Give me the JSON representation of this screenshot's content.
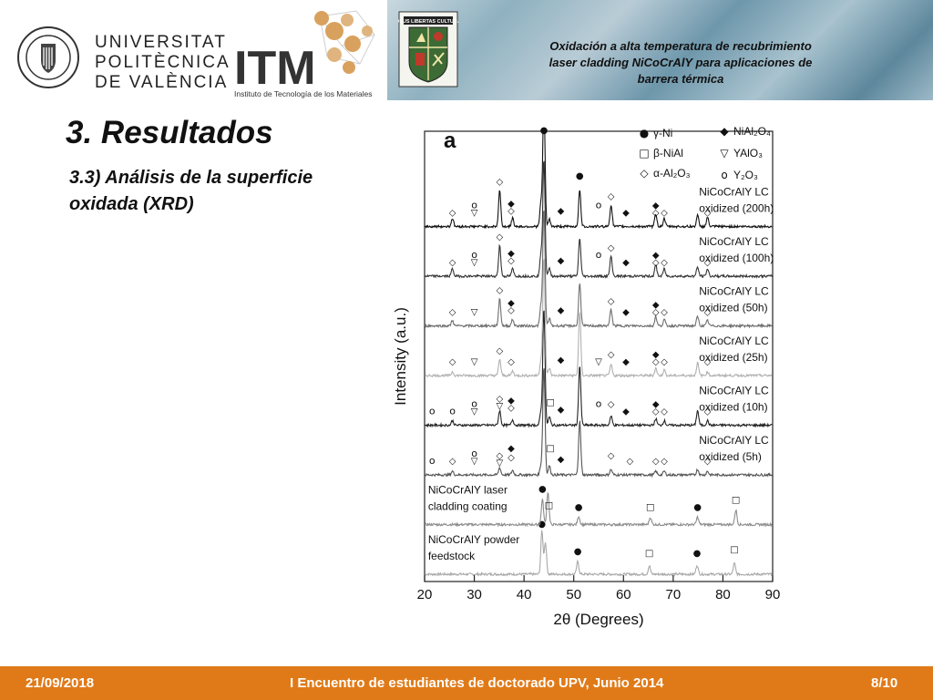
{
  "header": {
    "university": [
      "UNIVERSITAT",
      "POLITÈCNICA",
      "DE VALÈNCIA"
    ],
    "seal_text": "UNIVERSITAT POLITÈCNICA DE VALÈNCIA",
    "itm_letters": "ITM",
    "itm_caption": "Instituto de Tecnología de los Materiales",
    "shield_text": "DEUS LIBERTAS CULTURA",
    "banner_lines": [
      "Oxidación a alta temperatura de recubrimiento",
      "laser cladding NiCoCrAlY para aplicaciones de",
      "barrera térmica"
    ]
  },
  "slide": {
    "title": "3. Resultados",
    "subtitle_lines": [
      "3.3) Análisis de la superficie",
      "oxidada (XRD)"
    ]
  },
  "chart_data": {
    "type": "line",
    "panel_label": "a",
    "xlabel": "2θ (Degrees)",
    "ylabel": "Intensity (a.u.)",
    "xlim": [
      20,
      90
    ],
    "x_ticks": [
      "20",
      "30",
      "40",
      "50",
      "60",
      "70",
      "80",
      "90"
    ],
    "legend": [
      {
        "symbol": "●",
        "label": "γ-Ni"
      },
      {
        "symbol": "□",
        "label": "β-NiAl"
      },
      {
        "symbol": "◇",
        "label": "α-Al₂O₃"
      },
      {
        "symbol": "◆",
        "label": "NiAl₂O₄"
      },
      {
        "symbol": "▽",
        "label": "YAlO₃"
      },
      {
        "symbol": "o",
        "label": "Y₂O₃"
      }
    ],
    "series": [
      {
        "name": "NiCoCrAlY powder feedstock",
        "label_lines": [
          "NiCoCrAlY powder",
          "feedstock"
        ],
        "label_side": "left",
        "color": "#a8a8a8",
        "peaks": [
          [
            43.6,
            48
          ],
          [
            44.3,
            35
          ],
          [
            50.8,
            14
          ],
          [
            65.2,
            9
          ],
          [
            74.8,
            10
          ],
          [
            82.3,
            12
          ]
        ],
        "markers": [
          {
            "symbol": "●",
            "x": 43.6,
            "above": 52
          },
          {
            "symbol": "●",
            "x": 50.8,
            "above": 22
          },
          {
            "symbol": "□",
            "x": 65.2,
            "above": 20
          },
          {
            "symbol": "●",
            "x": 74.8,
            "above": 20
          },
          {
            "symbol": "□",
            "x": 82.3,
            "above": 24
          }
        ]
      },
      {
        "name": "NiCoCrAlY laser cladding coating",
        "label_lines": [
          "NiCoCrAlY laser",
          "cladding coating"
        ],
        "label_side": "left",
        "color": "#8c8c8c",
        "peaks": [
          [
            43.7,
            28
          ],
          [
            44.8,
            36
          ],
          [
            51.0,
            9
          ],
          [
            65.4,
            8
          ],
          [
            74.9,
            8
          ],
          [
            82.6,
            16
          ]
        ],
        "markers": [
          {
            "symbol": "●",
            "x": 43.7,
            "above": 36
          },
          {
            "symbol": "□",
            "x": 45.0,
            "above": 18
          },
          {
            "symbol": "●",
            "x": 51.0,
            "above": 16
          },
          {
            "symbol": "□",
            "x": 65.4,
            "above": 16
          },
          {
            "symbol": "●",
            "x": 74.9,
            "above": 16
          },
          {
            "symbol": "□",
            "x": 82.6,
            "above": 24
          }
        ]
      },
      {
        "name": "NiCoCrAlY LC oxidized (5h)",
        "label_lines": [
          "NiCoCrAlY LC",
          "oxidized (5h)"
        ],
        "label_side": "right",
        "color": "#555555",
        "peaks": [
          [
            25.6,
            4
          ],
          [
            35.1,
            8
          ],
          [
            37.7,
            5
          ],
          [
            43.4,
            10
          ],
          [
            44.0,
            120
          ],
          [
            45.1,
            10
          ],
          [
            51.2,
            60
          ],
          [
            57.5,
            6
          ],
          [
            66.5,
            4
          ],
          [
            68.2,
            4
          ],
          [
            74.9,
            6
          ],
          [
            76.9,
            4
          ]
        ],
        "markers": [
          {
            "symbol": "o",
            "x": 21.5,
            "above": 12
          },
          {
            "symbol": "◇",
            "x": 25.6,
            "above": 12
          },
          {
            "symbol": "o",
            "x": 30.0,
            "above": 20
          },
          {
            "symbol": "▽",
            "x": 30.0,
            "above": 12
          },
          {
            "symbol": "◇",
            "x": 35.1,
            "above": 18
          },
          {
            "symbol": "▽",
            "x": 35.1,
            "above": 10
          },
          {
            "symbol": "◆",
            "x": 37.4,
            "above": 26
          },
          {
            "symbol": "◇",
            "x": 37.4,
            "above": 16
          },
          {
            "symbol": "□",
            "x": 45.3,
            "above": 26
          },
          {
            "symbol": "◆",
            "x": 47.4,
            "above": 14
          },
          {
            "symbol": "◇",
            "x": 57.5,
            "above": 18
          },
          {
            "symbol": "◇",
            "x": 61.3,
            "above": 12
          },
          {
            "symbol": "◇",
            "x": 66.5,
            "above": 12
          },
          {
            "symbol": "◇",
            "x": 68.2,
            "above": 12
          },
          {
            "symbol": "◇",
            "x": 76.9,
            "above": 12
          }
        ]
      },
      {
        "name": "NiCoCrAlY LC oxidized (10h)",
        "label_lines": [
          "NiCoCrAlY LC",
          "oxidized (10h)"
        ],
        "label_side": "right",
        "color": "#222222",
        "peaks": [
          [
            25.6,
            5
          ],
          [
            35.1,
            16
          ],
          [
            37.7,
            6
          ],
          [
            43.4,
            14
          ],
          [
            44.0,
            130
          ],
          [
            45.1,
            9
          ],
          [
            51.2,
            66
          ],
          [
            57.5,
            10
          ],
          [
            66.5,
            7
          ],
          [
            68.2,
            5
          ],
          [
            74.9,
            16
          ],
          [
            76.9,
            5
          ]
        ],
        "markers": [
          {
            "symbol": "o",
            "x": 21.5,
            "above": 12
          },
          {
            "symbol": "o",
            "x": 25.6,
            "above": 12
          },
          {
            "symbol": "o",
            "x": 30.0,
            "above": 20
          },
          {
            "symbol": "▽",
            "x": 30.0,
            "above": 12
          },
          {
            "symbol": "◇",
            "x": 35.1,
            "above": 26
          },
          {
            "symbol": "▽",
            "x": 35.1,
            "above": 18
          },
          {
            "symbol": "◆",
            "x": 37.4,
            "above": 24
          },
          {
            "symbol": "◇",
            "x": 37.4,
            "above": 16
          },
          {
            "symbol": "□",
            "x": 45.3,
            "above": 22
          },
          {
            "symbol": "◆",
            "x": 47.4,
            "above": 14
          },
          {
            "symbol": "o",
            "x": 55.0,
            "above": 20
          },
          {
            "symbol": "◇",
            "x": 57.5,
            "above": 20
          },
          {
            "symbol": "◆",
            "x": 60.5,
            "above": 12
          },
          {
            "symbol": "◆",
            "x": 66.5,
            "above": 20
          },
          {
            "symbol": "◇",
            "x": 66.5,
            "above": 12
          },
          {
            "symbol": "◇",
            "x": 68.2,
            "above": 12
          },
          {
            "symbol": "◇",
            "x": 76.9,
            "above": 12
          }
        ]
      },
      {
        "name": "NiCoCrAlY LC oxidized (25h)",
        "label_lines": [
          "NiCoCrAlY LC",
          "oxidized (25h)"
        ],
        "label_side": "right",
        "color": "#b0b0b0",
        "peaks": [
          [
            25.6,
            4
          ],
          [
            35.1,
            18
          ],
          [
            37.7,
            5
          ],
          [
            43.4,
            16
          ],
          [
            44.0,
            130
          ],
          [
            45.1,
            8
          ],
          [
            51.2,
            70
          ],
          [
            57.5,
            12
          ],
          [
            66.5,
            8
          ],
          [
            68.2,
            6
          ],
          [
            74.9,
            14
          ],
          [
            76.9,
            4
          ]
        ],
        "markers": [
          {
            "symbol": "◇",
            "x": 25.6,
            "above": 12
          },
          {
            "symbol": "▽",
            "x": 30.0,
            "above": 12
          },
          {
            "symbol": "◇",
            "x": 35.1,
            "above": 24
          },
          {
            "symbol": "◇",
            "x": 37.4,
            "above": 12
          },
          {
            "symbol": "◆",
            "x": 47.4,
            "above": 14
          },
          {
            "symbol": "▽",
            "x": 55.0,
            "above": 12
          },
          {
            "symbol": "◇",
            "x": 57.5,
            "above": 20
          },
          {
            "symbol": "◆",
            "x": 60.5,
            "above": 12
          },
          {
            "symbol": "◆",
            "x": 66.5,
            "above": 20
          },
          {
            "symbol": "◇",
            "x": 66.5,
            "above": 12
          },
          {
            "symbol": "◇",
            "x": 68.2,
            "above": 12
          },
          {
            "symbol": "◇",
            "x": 76.9,
            "above": 12
          }
        ]
      },
      {
        "name": "NiCoCrAlY LC oxidized (50h)",
        "label_lines": [
          "NiCoCrAlY LC",
          "oxidized (50h)"
        ],
        "label_side": "right",
        "color": "#6e6e6e",
        "peaks": [
          [
            25.6,
            6
          ],
          [
            35.1,
            30
          ],
          [
            37.7,
            7
          ],
          [
            43.4,
            22
          ],
          [
            44.0,
            130
          ],
          [
            45.1,
            8
          ],
          [
            51.2,
            48
          ],
          [
            57.5,
            18
          ],
          [
            66.5,
            10
          ],
          [
            68.2,
            7
          ],
          [
            74.9,
            10
          ],
          [
            76.9,
            6
          ]
        ],
        "markers": [
          {
            "symbol": "◇",
            "x": 25.6,
            "above": 12
          },
          {
            "symbol": "▽",
            "x": 30.0,
            "above": 12
          },
          {
            "symbol": "◇",
            "x": 35.1,
            "above": 36
          },
          {
            "symbol": "◆",
            "x": 37.4,
            "above": 22
          },
          {
            "symbol": "◇",
            "x": 37.4,
            "above": 14
          },
          {
            "symbol": "◆",
            "x": 47.4,
            "above": 14
          },
          {
            "symbol": "◇",
            "x": 57.5,
            "above": 24
          },
          {
            "symbol": "◆",
            "x": 60.5,
            "above": 12
          },
          {
            "symbol": "◆",
            "x": 66.5,
            "above": 20
          },
          {
            "symbol": "◇",
            "x": 66.5,
            "above": 12
          },
          {
            "symbol": "◇",
            "x": 68.2,
            "above": 12
          },
          {
            "symbol": "◇",
            "x": 76.9,
            "above": 12
          }
        ]
      },
      {
        "name": "NiCoCrAlY LC oxidized (100h)",
        "label_lines": [
          "NiCoCrAlY LC",
          "oxidized (100h)"
        ],
        "label_side": "right",
        "color": "#333333",
        "peaks": [
          [
            25.6,
            8
          ],
          [
            35.1,
            34
          ],
          [
            37.7,
            8
          ],
          [
            43.4,
            24
          ],
          [
            44.0,
            130
          ],
          [
            45.1,
            8
          ],
          [
            51.2,
            42
          ],
          [
            57.5,
            22
          ],
          [
            66.5,
            12
          ],
          [
            68.2,
            8
          ],
          [
            74.9,
            10
          ],
          [
            76.9,
            8
          ]
        ],
        "markers": [
          {
            "symbol": "◇",
            "x": 25.6,
            "above": 12
          },
          {
            "symbol": "o",
            "x": 30.0,
            "above": 20
          },
          {
            "symbol": "▽",
            "x": 30.0,
            "above": 12
          },
          {
            "symbol": "◇",
            "x": 35.1,
            "above": 40
          },
          {
            "symbol": "◆",
            "x": 37.4,
            "above": 22
          },
          {
            "symbol": "◇",
            "x": 37.4,
            "above": 14
          },
          {
            "symbol": "◆",
            "x": 47.4,
            "above": 14
          },
          {
            "symbol": "o",
            "x": 55.0,
            "above": 20
          },
          {
            "symbol": "◇",
            "x": 57.5,
            "above": 28
          },
          {
            "symbol": "◆",
            "x": 60.5,
            "above": 12
          },
          {
            "symbol": "◆",
            "x": 66.5,
            "above": 20
          },
          {
            "symbol": "◇",
            "x": 66.5,
            "above": 12
          },
          {
            "symbol": "◇",
            "x": 68.2,
            "above": 12
          },
          {
            "symbol": "◇",
            "x": 76.9,
            "above": 12
          }
        ]
      },
      {
        "name": "NiCoCrAlY LC oxidized (200h)",
        "label_lines": [
          "NiCoCrAlY LC",
          "oxidized (200h)"
        ],
        "label_side": "right",
        "color": "#111111",
        "peaks": [
          [
            25.6,
            9
          ],
          [
            35.1,
            40
          ],
          [
            37.7,
            9
          ],
          [
            43.4,
            26
          ],
          [
            44.0,
            140
          ],
          [
            45.1,
            8
          ],
          [
            51.2,
            40
          ],
          [
            57.5,
            24
          ],
          [
            66.5,
            14
          ],
          [
            68.2,
            9
          ],
          [
            74.9,
            12
          ],
          [
            76.9,
            10
          ]
        ],
        "markers": [
          {
            "symbol": "◇",
            "x": 25.6,
            "above": 12
          },
          {
            "symbol": "o",
            "x": 30.0,
            "above": 20
          },
          {
            "symbol": "▽",
            "x": 30.0,
            "above": 12
          },
          {
            "symbol": "◇",
            "x": 35.1,
            "above": 46
          },
          {
            "symbol": "◆",
            "x": 37.4,
            "above": 22
          },
          {
            "symbol": "◇",
            "x": 37.4,
            "above": 14
          },
          {
            "symbol": "◆",
            "x": 47.4,
            "above": 14
          },
          {
            "symbol": "o",
            "x": 55.0,
            "above": 20
          },
          {
            "symbol": "◇",
            "x": 57.5,
            "above": 30
          },
          {
            "symbol": "◆",
            "x": 60.5,
            "above": 12
          },
          {
            "symbol": "◆",
            "x": 66.5,
            "above": 20
          },
          {
            "symbol": "◇",
            "x": 66.5,
            "above": 12
          },
          {
            "symbol": "◇",
            "x": 68.2,
            "above": 12
          },
          {
            "symbol": "◇",
            "x": 76.9,
            "above": 12
          }
        ]
      }
    ],
    "top_markers": [
      {
        "symbol": "●",
        "x": 44.0
      },
      {
        "symbol": "●",
        "x": 51.2
      }
    ]
  },
  "footer": {
    "date": "21/09/2018",
    "event": "I Encuentro de estudiantes de doctorado UPV, Junio 2014",
    "page": "8/10"
  },
  "colors": {
    "footer_bg": "#e07a18",
    "itm_dark": "#333333",
    "itm_gold": "#d9a15e"
  }
}
